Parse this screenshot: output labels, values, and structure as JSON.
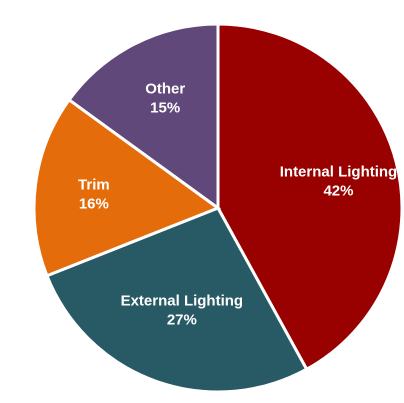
{
  "chart_data": {
    "type": "pie",
    "slices": [
      {
        "label": "Internal Lighting",
        "value": 42,
        "value_label": "42%",
        "color": "#990000"
      },
      {
        "label": "External Lighting",
        "value": 27,
        "value_label": "27%",
        "color": "#285a66"
      },
      {
        "label": "Trim",
        "value": 16,
        "value_label": "16%",
        "color": "#e46c0a"
      },
      {
        "label": "Other",
        "value": 15,
        "value_label": "15%",
        "color": "#60497a"
      }
    ],
    "start": "top",
    "direction": "clockwise",
    "legend": "none"
  }
}
